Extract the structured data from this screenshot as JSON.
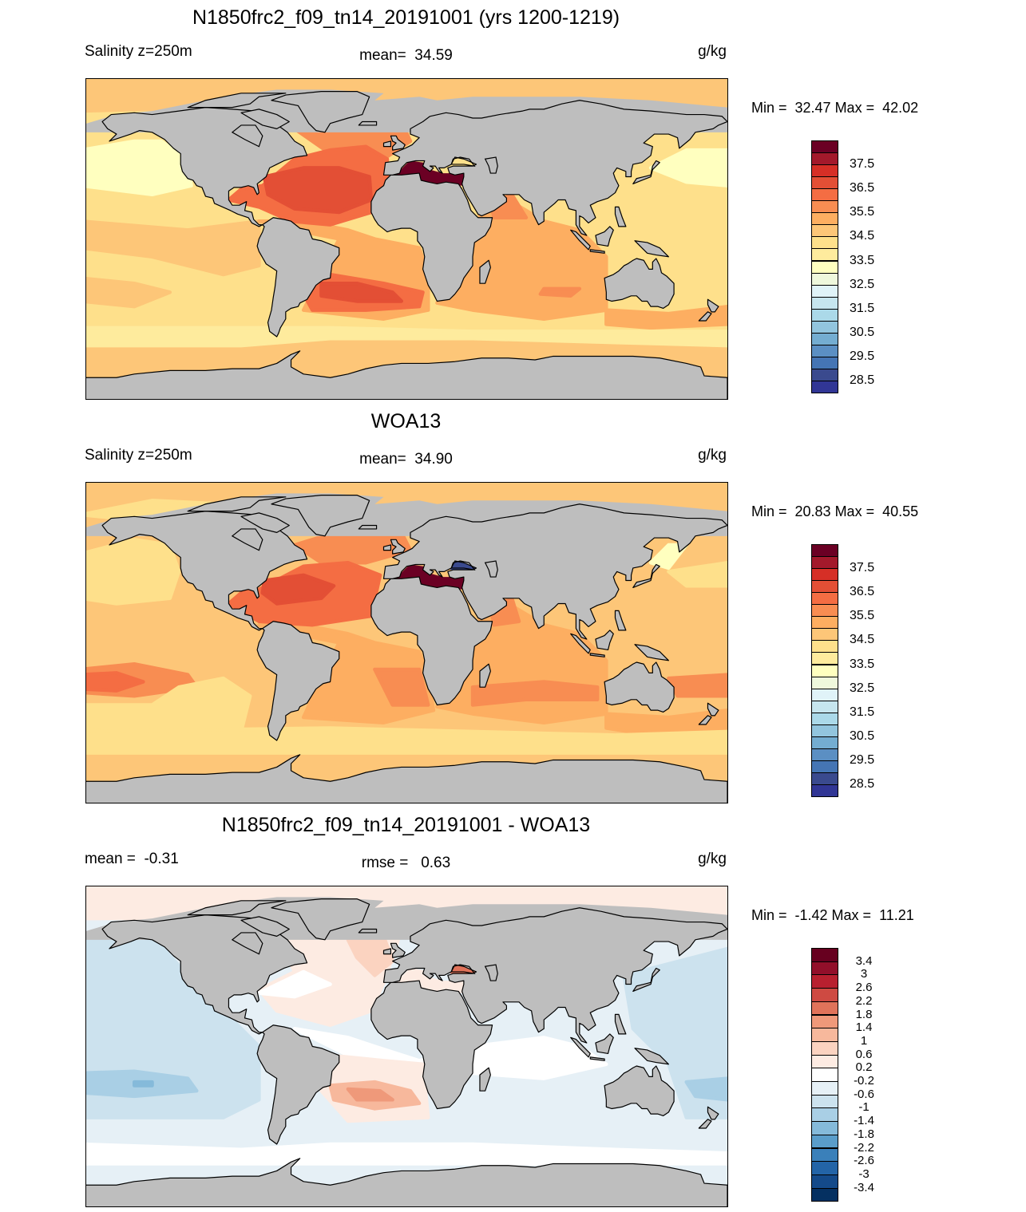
{
  "panels": [
    {
      "title": "N1850frc2_f09_tn14_20191001 (yrs 1200-1219)",
      "left_label": "Salinity z=250m",
      "center_label": "mean=  34.59",
      "units": "g/kg",
      "minmax": "Min =  32.47 Max =  42.02",
      "colorbar": {
        "labels": [
          "37.5",
          "36.5",
          "35.5",
          "34.5",
          "33.5",
          "32.5",
          "31.5",
          "30.5",
          "29.5",
          "28.5"
        ],
        "colors": [
          "#6B0024",
          "#A3192B",
          "#D62F26",
          "#E34F35",
          "#F46D43",
          "#F88D52",
          "#FDAE61",
          "#FDC678",
          "#FEE08B",
          "#FEEB9D",
          "#FFFFBF",
          "#EFF8DC",
          "#E0F3F8",
          "#C6E5EE",
          "#ABD9E9",
          "#92C5DE",
          "#74ADD1",
          "#5B8FC3",
          "#4575B4",
          "#3A4A8E",
          "#313695"
        ]
      }
    },
    {
      "title": "WOA13",
      "left_label": "Salinity z=250m",
      "center_label": "mean=  34.90",
      "units": "g/kg",
      "minmax": "Min =  20.83 Max =  40.55",
      "colorbar": {
        "labels": [
          "37.5",
          "36.5",
          "35.5",
          "34.5",
          "33.5",
          "32.5",
          "31.5",
          "30.5",
          "29.5",
          "28.5"
        ],
        "colors": [
          "#6B0024",
          "#A3192B",
          "#D62F26",
          "#E34F35",
          "#F46D43",
          "#F88D52",
          "#FDAE61",
          "#FDC678",
          "#FEE08B",
          "#FEEB9D",
          "#FFFFBF",
          "#EFF8DC",
          "#E0F3F8",
          "#C6E5EE",
          "#ABD9E9",
          "#92C5DE",
          "#74ADD1",
          "#5B8FC3",
          "#4575B4",
          "#3A4A8E",
          "#313695"
        ]
      }
    },
    {
      "title": "N1850frc2_f09_tn14_20191001 - WOA13",
      "left_label": "mean =  -0.31",
      "center_label": "rmse =   0.63",
      "units": "g/kg",
      "minmax": "Min =  -1.42 Max =  11.21",
      "colorbar": {
        "labels": [
          "3.4",
          "3",
          "2.6",
          "2.2",
          "1.8",
          "1.4",
          "1",
          "0.6",
          "0.2",
          "-0.2",
          "-0.6",
          "-1",
          "-1.4",
          "-1.8",
          "-2.2",
          "-2.6",
          "-3",
          "-3.4"
        ],
        "colors": [
          "#67001F",
          "#920F2A",
          "#B8202F",
          "#CE4A42",
          "#E0735A",
          "#EF997A",
          "#F7B89C",
          "#FBD3C0",
          "#FDEBE2",
          "#FFFFFF",
          "#E6F0F6",
          "#CCE2EE",
          "#A9CFE5",
          "#85BADA",
          "#5A9DCA",
          "#3A80BA",
          "#2364A7",
          "#144A8A",
          "#053061"
        ]
      }
    }
  ],
  "land_color": "#BEBEBE"
}
